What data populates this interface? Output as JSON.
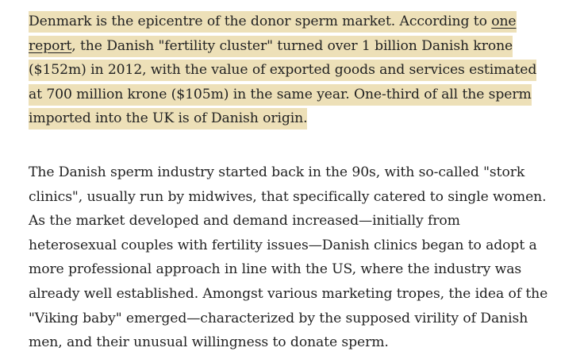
{
  "article": {
    "highlighted_paragraph": {
      "before_link": "Denmark is the epicentre of the donor sperm market. According to ",
      "link_text": "one report",
      "after_link": ", the Danish \"fertility cluster\" turned over 1 billion Danish krone ($152m) in 2012, with the value of exported goods and services estimated at 700 million krone ($105m) in the same year. One-third of all the sperm imported into the UK is of Danish origin.",
      "highlight_color": "#ede0b8"
    },
    "second_paragraph": "The Danish sperm industry started back in the 90s, with so-called \"stork clinics\", usually run by midwives, that specifically catered to single women. As the market developed and demand increased—initially from heterosexual couples with fertility issues—Danish clinics began to adopt a more professional approach in line with the US, where the industry was already well established. Amongst various marketing tropes, the idea of the \"Viking baby\" emerged—characterized by the supposed virility of Danish men, and their unusual willingness to donate sperm."
  }
}
